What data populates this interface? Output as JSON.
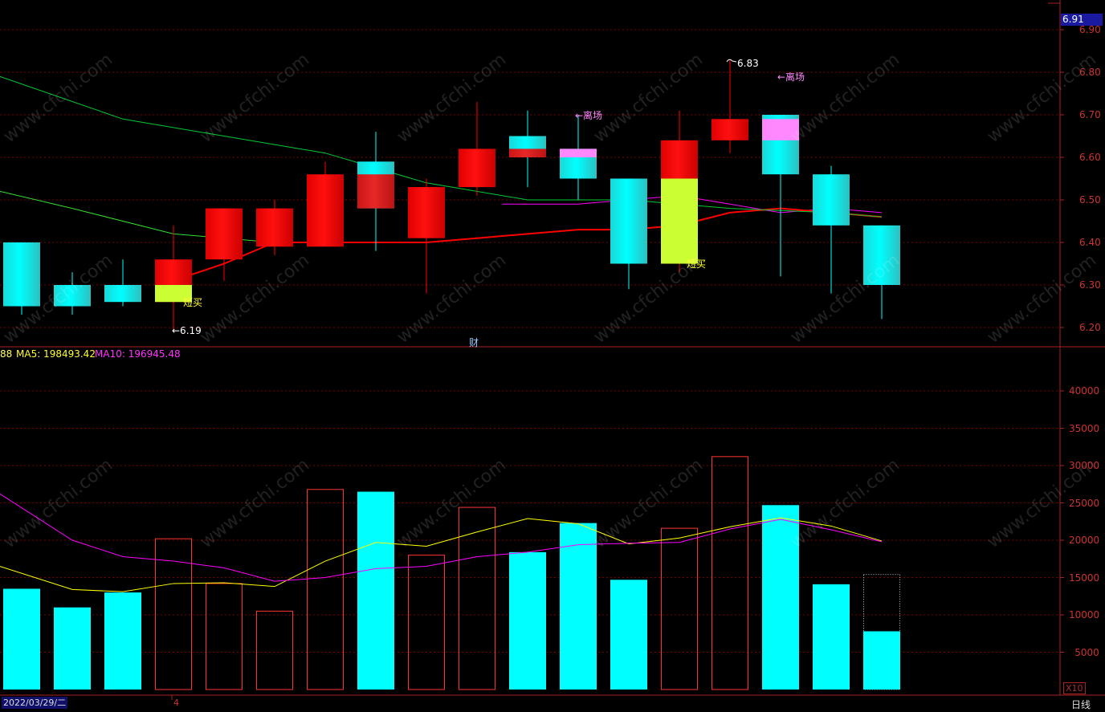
{
  "price_axis": {
    "ticks": [
      "6.90",
      "6.80",
      "6.70",
      "6.60",
      "6.50",
      "6.40",
      "6.30",
      "6.20"
    ],
    "current_price": "6.91"
  },
  "volume_axis": {
    "ticks": [
      "40000",
      "35000",
      "30000",
      "25000",
      "20000",
      "15000",
      "10000",
      "5000"
    ],
    "scale": "X10"
  },
  "volume_indicator": {
    "prefix": "88",
    "ma5_label": "MA5: 198493.42",
    "ma10_label": "MA10: 196945.48"
  },
  "annotations": {
    "low_price": "←6.19",
    "high_price": "6.83",
    "exit_label_1": "←离场",
    "exit_label_2": "←离场",
    "buy_label_1": "短买",
    "buy_label_2": "短买",
    "finance_marker": "财"
  },
  "footer": {
    "date": "2022/03/29/二",
    "period": "日线",
    "month_tick": "4"
  },
  "watermark_text": "www.cfchi.com",
  "colors": {
    "up": "#ff0000",
    "down": "#00ffff",
    "buy_signal": "#ccff33",
    "exit_signal": "#ff88ff",
    "axis": "#aa2222",
    "ma5": "#ffff00",
    "ma10": "#ff00ff",
    "ma_green": "#00cc33"
  },
  "chart_data": {
    "type": "candlestick",
    "price_range": [
      6.16,
      6.93
    ],
    "volume_range": [
      0,
      45000
    ],
    "candles": [
      {
        "open": 6.4,
        "close": 6.25,
        "high": 6.4,
        "low": 6.23,
        "volume": 13500
      },
      {
        "open": 6.3,
        "close": 6.25,
        "high": 6.33,
        "low": 6.23,
        "volume": 11000
      },
      {
        "open": 6.3,
        "close": 6.26,
        "high": 6.36,
        "low": 6.25,
        "volume": 13000
      },
      {
        "open": 6.26,
        "close": 6.36,
        "high": 6.44,
        "low": 6.19,
        "volume": 20200,
        "buy_signal": [
          6.26,
          6.3
        ]
      },
      {
        "open": 6.36,
        "close": 6.48,
        "high": 6.48,
        "low": 6.31,
        "volume": 14200
      },
      {
        "open": 6.39,
        "close": 6.48,
        "high": 6.5,
        "low": 6.37,
        "volume": 10500
      },
      {
        "open": 6.39,
        "close": 6.56,
        "high": 6.59,
        "low": 6.39,
        "volume": 26800
      },
      {
        "open": 6.59,
        "close": 6.48,
        "high": 6.66,
        "low": 6.38,
        "volume": 26500,
        "red_overlay": [
          6.48,
          6.56
        ]
      },
      {
        "open": 6.41,
        "close": 6.53,
        "high": 6.55,
        "low": 6.28,
        "volume": 18000,
        "red_overlay": [
          6.48,
          6.53
        ]
      },
      {
        "open": 6.53,
        "close": 6.62,
        "high": 6.73,
        "low": 6.51,
        "volume": 24400
      },
      {
        "open": 6.65,
        "close": 6.6,
        "high": 6.71,
        "low": 6.53,
        "volume": 18400,
        "red_overlay": [
          6.6,
          6.62
        ]
      },
      {
        "open": 6.62,
        "close": 6.55,
        "high": 6.7,
        "low": 6.5,
        "volume": 22300,
        "exit_signal": [
          6.6,
          6.62
        ]
      },
      {
        "open": 6.55,
        "close": 6.35,
        "high": 6.55,
        "low": 6.29,
        "volume": 14700
      },
      {
        "open": 6.35,
        "close": 6.64,
        "high": 6.71,
        "low": 6.33,
        "volume": 21600,
        "buy_signal": [
          6.35,
          6.55
        ]
      },
      {
        "open": 6.64,
        "close": 6.69,
        "high": 6.83,
        "low": 6.61,
        "volume": 31200
      },
      {
        "open": 6.7,
        "close": 6.56,
        "high": 6.7,
        "low": 6.32,
        "volume": 24700,
        "exit_signal": [
          6.64,
          6.69
        ]
      },
      {
        "open": 6.56,
        "close": 6.44,
        "high": 6.58,
        "low": 6.28,
        "volume": 14100
      },
      {
        "open": 6.44,
        "close": 6.3,
        "high": 6.44,
        "low": 6.22,
        "volume": 7800,
        "volume_outline": 15400
      }
    ],
    "price_lines": [
      {
        "name": "magenta",
        "color": "#ff00ff",
        "points": [
          [
            11,
            6.49
          ],
          [
            12,
            6.5
          ],
          [
            13,
            6.51
          ],
          [
            14,
            6.49
          ],
          [
            15,
            6.47
          ],
          [
            16,
            6.48
          ],
          [
            17,
            6.47
          ]
        ],
        "start_x": 9.5
      },
      {
        "name": "red",
        "color": "#ff0000",
        "points": [
          [
            3,
            6.31
          ],
          [
            4,
            6.35
          ],
          [
            5,
            6.4
          ],
          [
            6,
            6.4
          ],
          [
            7,
            6.4
          ],
          [
            8,
            6.4
          ],
          [
            9,
            6.41
          ],
          [
            10,
            6.42
          ],
          [
            11,
            6.43
          ],
          [
            12,
            6.43
          ],
          [
            13,
            6.44
          ],
          [
            14,
            6.47
          ],
          [
            15,
            6.48
          ],
          [
            16,
            6.47
          ],
          [
            17,
            6.46
          ]
        ]
      },
      {
        "name": "green_long",
        "color": "#00cc33",
        "points": [
          [
            -0.6,
            6.79
          ],
          [
            2,
            6.69
          ],
          [
            4,
            6.65
          ],
          [
            6,
            6.61
          ],
          [
            8,
            6.54
          ],
          [
            10,
            6.5
          ],
          [
            12,
            6.5
          ],
          [
            14,
            6.48
          ],
          [
            16,
            6.47
          ],
          [
            17,
            6.46
          ]
        ]
      },
      {
        "name": "green_short",
        "color": "#33dd33",
        "points": [
          [
            -0.6,
            6.52
          ],
          [
            1,
            6.48
          ],
          [
            3,
            6.42
          ],
          [
            4,
            6.41
          ],
          [
            5,
            6.4
          ]
        ]
      }
    ],
    "volume_lines": [
      {
        "name": "MA5",
        "color": "#ffff00",
        "points": [
          [
            -0.6,
            16500
          ],
          [
            1,
            13400
          ],
          [
            2,
            13100
          ],
          [
            3,
            14200
          ],
          [
            4,
            14300
          ],
          [
            5,
            13800
          ],
          [
            6,
            17200
          ],
          [
            7,
            19700
          ],
          [
            8,
            19200
          ],
          [
            9,
            21100
          ],
          [
            10,
            22900
          ],
          [
            11,
            22200
          ],
          [
            12,
            19500
          ],
          [
            13,
            20300
          ],
          [
            14,
            21800
          ],
          [
            15,
            23000
          ],
          [
            16,
            21900
          ],
          [
            17,
            19900
          ]
        ]
      },
      {
        "name": "MA10",
        "color": "#ff00ff",
        "points": [
          [
            -0.6,
            26200
          ],
          [
            1,
            20000
          ],
          [
            2,
            17800
          ],
          [
            3,
            17200
          ],
          [
            4,
            16300
          ],
          [
            5,
            14500
          ],
          [
            6,
            15000
          ],
          [
            7,
            16200
          ],
          [
            8,
            16500
          ],
          [
            9,
            17800
          ],
          [
            10,
            18400
          ],
          [
            11,
            19400
          ],
          [
            12,
            19600
          ],
          [
            13,
            19700
          ],
          [
            14,
            21500
          ],
          [
            15,
            22800
          ],
          [
            16,
            21400
          ],
          [
            17,
            19800
          ]
        ]
      }
    ]
  }
}
